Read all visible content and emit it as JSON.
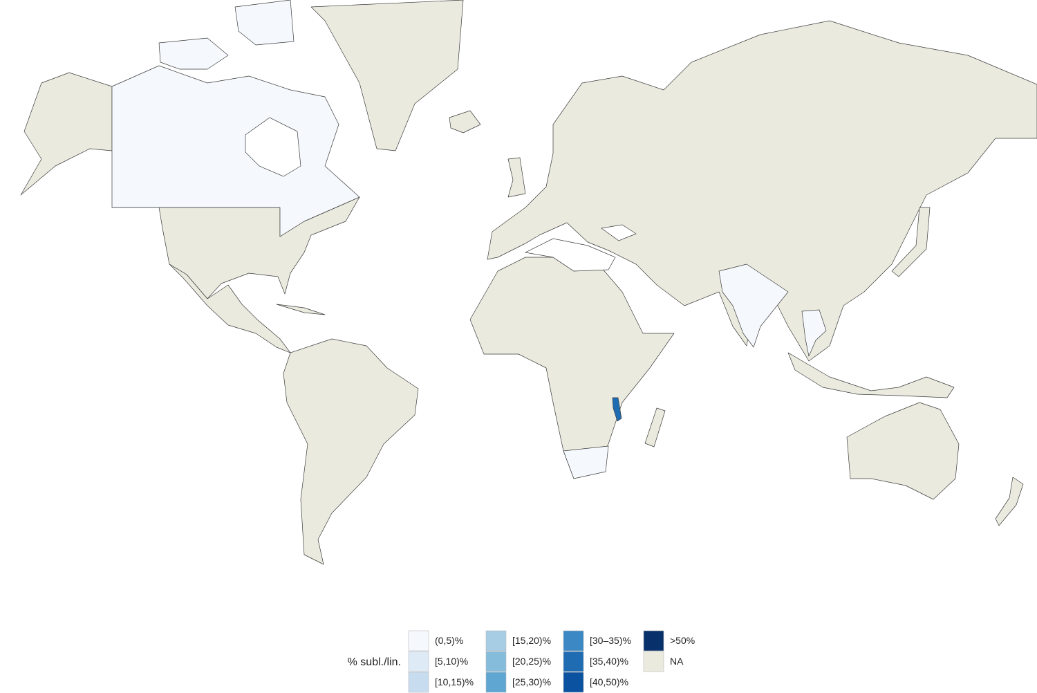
{
  "legend": {
    "title": "% subl./lin.",
    "items": [
      {
        "label": "(0,5)%",
        "color": "#f5f9fe"
      },
      {
        "label": "[5,10)%",
        "color": "#deebf7"
      },
      {
        "label": "[10,15)%",
        "color": "#c8dcef"
      },
      {
        "label": "[15,20)%",
        "color": "#a6cde3"
      },
      {
        "label": "[20,25)%",
        "color": "#85bcdc"
      },
      {
        "label": "[25,30)%",
        "color": "#5fa6d2"
      },
      {
        "label": "[30–35)%",
        "color": "#3b88c4"
      },
      {
        "label": "[35,40)%",
        "color": "#1f6cb3"
      },
      {
        "label": "[40,50)%",
        "color": "#0b52a0"
      },
      {
        "label": ">50%",
        "color": "#08306b"
      },
      {
        "label": "NA",
        "color": "#eaeadf"
      }
    ]
  }
}
